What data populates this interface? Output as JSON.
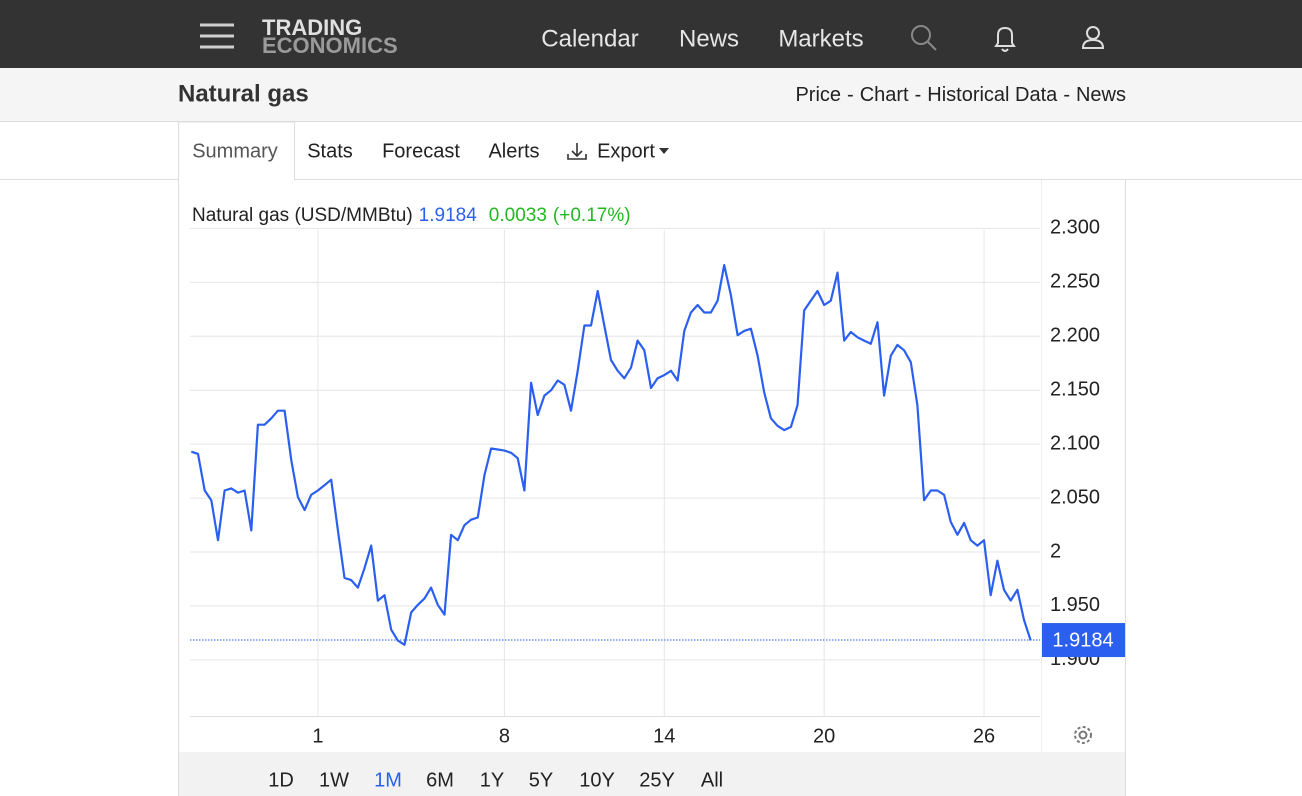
{
  "nav": {
    "brand": [
      "TRADING",
      "ECONOMICS"
    ],
    "links": [
      "Calendar",
      "News",
      "Markets"
    ]
  },
  "header": {
    "title": "Natural gas",
    "separator": "-",
    "links": [
      "Price",
      "Chart",
      "Historical Data",
      "News"
    ]
  },
  "tabs": [
    "Summary",
    "Stats",
    "Forecast",
    "Alerts",
    "Export"
  ],
  "active_tab": 0,
  "chart_data": {
    "type": "line",
    "last_price": 1.9184,
    "change": 0.0033,
    "change_percent": "(+0.17%)",
    "x": [
      -3.75,
      -3.5,
      -3.25,
      -3,
      -2.75,
      -2.5,
      -2.25,
      -2,
      -1.75,
      -1.5,
      -1.25,
      -1,
      -0.75,
      -0.5,
      -0.25,
      0,
      0.25,
      0.5,
      0.75,
      1,
      1.25,
      1.5,
      1.75,
      2,
      2.25,
      2.5,
      2.75,
      3,
      3.25,
      3.5,
      3.75,
      4,
      4.25,
      4.5,
      4.75,
      5,
      5.25,
      5.5,
      5.75,
      6,
      6.25,
      6.5,
      6.75,
      7,
      7.25,
      7.5,
      7.75,
      8,
      8.25,
      8.5,
      8.75,
      9,
      9.25,
      9.5,
      9.75,
      10,
      10.25,
      10.5,
      10.75,
      11,
      11.25,
      11.5,
      11.75,
      12,
      12.25,
      12.5,
      12.75,
      13,
      13.25,
      13.5,
      13.75,
      14,
      14.25,
      14.5,
      14.75,
      15,
      15.25,
      15.5,
      15.75,
      16,
      16.25,
      16.5,
      16.75,
      17,
      17.25,
      17.5,
      17.75,
      18,
      18.25,
      18.5,
      18.75,
      19,
      19.25,
      19.5,
      19.75,
      20,
      20.25,
      20.5,
      20.75,
      21,
      21.25,
      21.5,
      21.75,
      22,
      22.25,
      22.5,
      22.75,
      23,
      23.25,
      23.5,
      23.75,
      24,
      24.25,
      24.5,
      24.75,
      25,
      25.25,
      25.5,
      25.75,
      26,
      26.25,
      26.5,
      26.75,
      27,
      27.25,
      27.5,
      27.75
    ],
    "series": [
      {
        "name": "Natural gas (USD/MMBtu)",
        "color": "#2b5ff0",
        "values": [
          2.093,
          2.091,
          2.057,
          2.048,
          2.011,
          2.057,
          2.059,
          2.055,
          2.057,
          2.02,
          2.118,
          2.118,
          2.124,
          2.131,
          2.131,
          2.085,
          2.051,
          2.039,
          2.053,
          2.057,
          2.062,
          2.067,
          2.02,
          1.976,
          1.974,
          1.967,
          1.985,
          2.006,
          1.955,
          1.96,
          1.928,
          1.918,
          1.914,
          1.944,
          1.951,
          1.957,
          1.967,
          1.951,
          1.942,
          2.016,
          2.011,
          2.025,
          2.03,
          2.032,
          2.071,
          2.096,
          2.095,
          2.094,
          2.092,
          2.087,
          2.057,
          2.157,
          2.127,
          2.145,
          2.15,
          2.159,
          2.155,
          2.131,
          2.168,
          2.21,
          2.21,
          2.242,
          2.21,
          2.178,
          2.168,
          2.161,
          2.171,
          2.196,
          2.187,
          2.152,
          2.161,
          2.164,
          2.168,
          2.159,
          2.205,
          2.222,
          2.229,
          2.222,
          2.222,
          2.233,
          2.266,
          2.238,
          2.201,
          2.205,
          2.207,
          2.182,
          2.148,
          2.124,
          2.117,
          2.113,
          2.116,
          2.136,
          2.224,
          2.233,
          2.242,
          2.229,
          2.233,
          2.259,
          2.196,
          2.204,
          2.199,
          2.196,
          2.193,
          2.213,
          2.145,
          2.182,
          2.192,
          2.187,
          2.176,
          2.136,
          2.048,
          2.057,
          2.057,
          2.053,
          2.028,
          2.016,
          2.027,
          2.011,
          2.006,
          2.011,
          1.96,
          1.992,
          1.965,
          1.955,
          1.965,
          1.937,
          1.918
        ]
      }
    ],
    "xlim": [
      -3.8,
      28.1
    ],
    "xticks": [
      1,
      8,
      14,
      20,
      26
    ],
    "ylim": [
      1.848,
      2.343
    ],
    "yticks": [
      {
        "value": 1.9,
        "label": "1.900"
      },
      {
        "value": 1.95,
        "label": "1.950"
      },
      2,
      {
        "value": 2.05,
        "label": "2.050"
      },
      {
        "value": 2.1,
        "label": "2.100"
      },
      {
        "value": 2.15,
        "label": "2.150"
      },
      {
        "value": 2.2,
        "label": "2.200"
      },
      {
        "value": 2.25,
        "label": "2.250"
      },
      {
        "value": 2.3,
        "label": "2.300"
      }
    ],
    "grid": true,
    "up_color": "#22b822"
  },
  "ranges": [
    "1D",
    "1W",
    "1M",
    "6M",
    "1Y",
    "5Y",
    "10Y",
    "25Y",
    "All"
  ],
  "active_range": 2
}
